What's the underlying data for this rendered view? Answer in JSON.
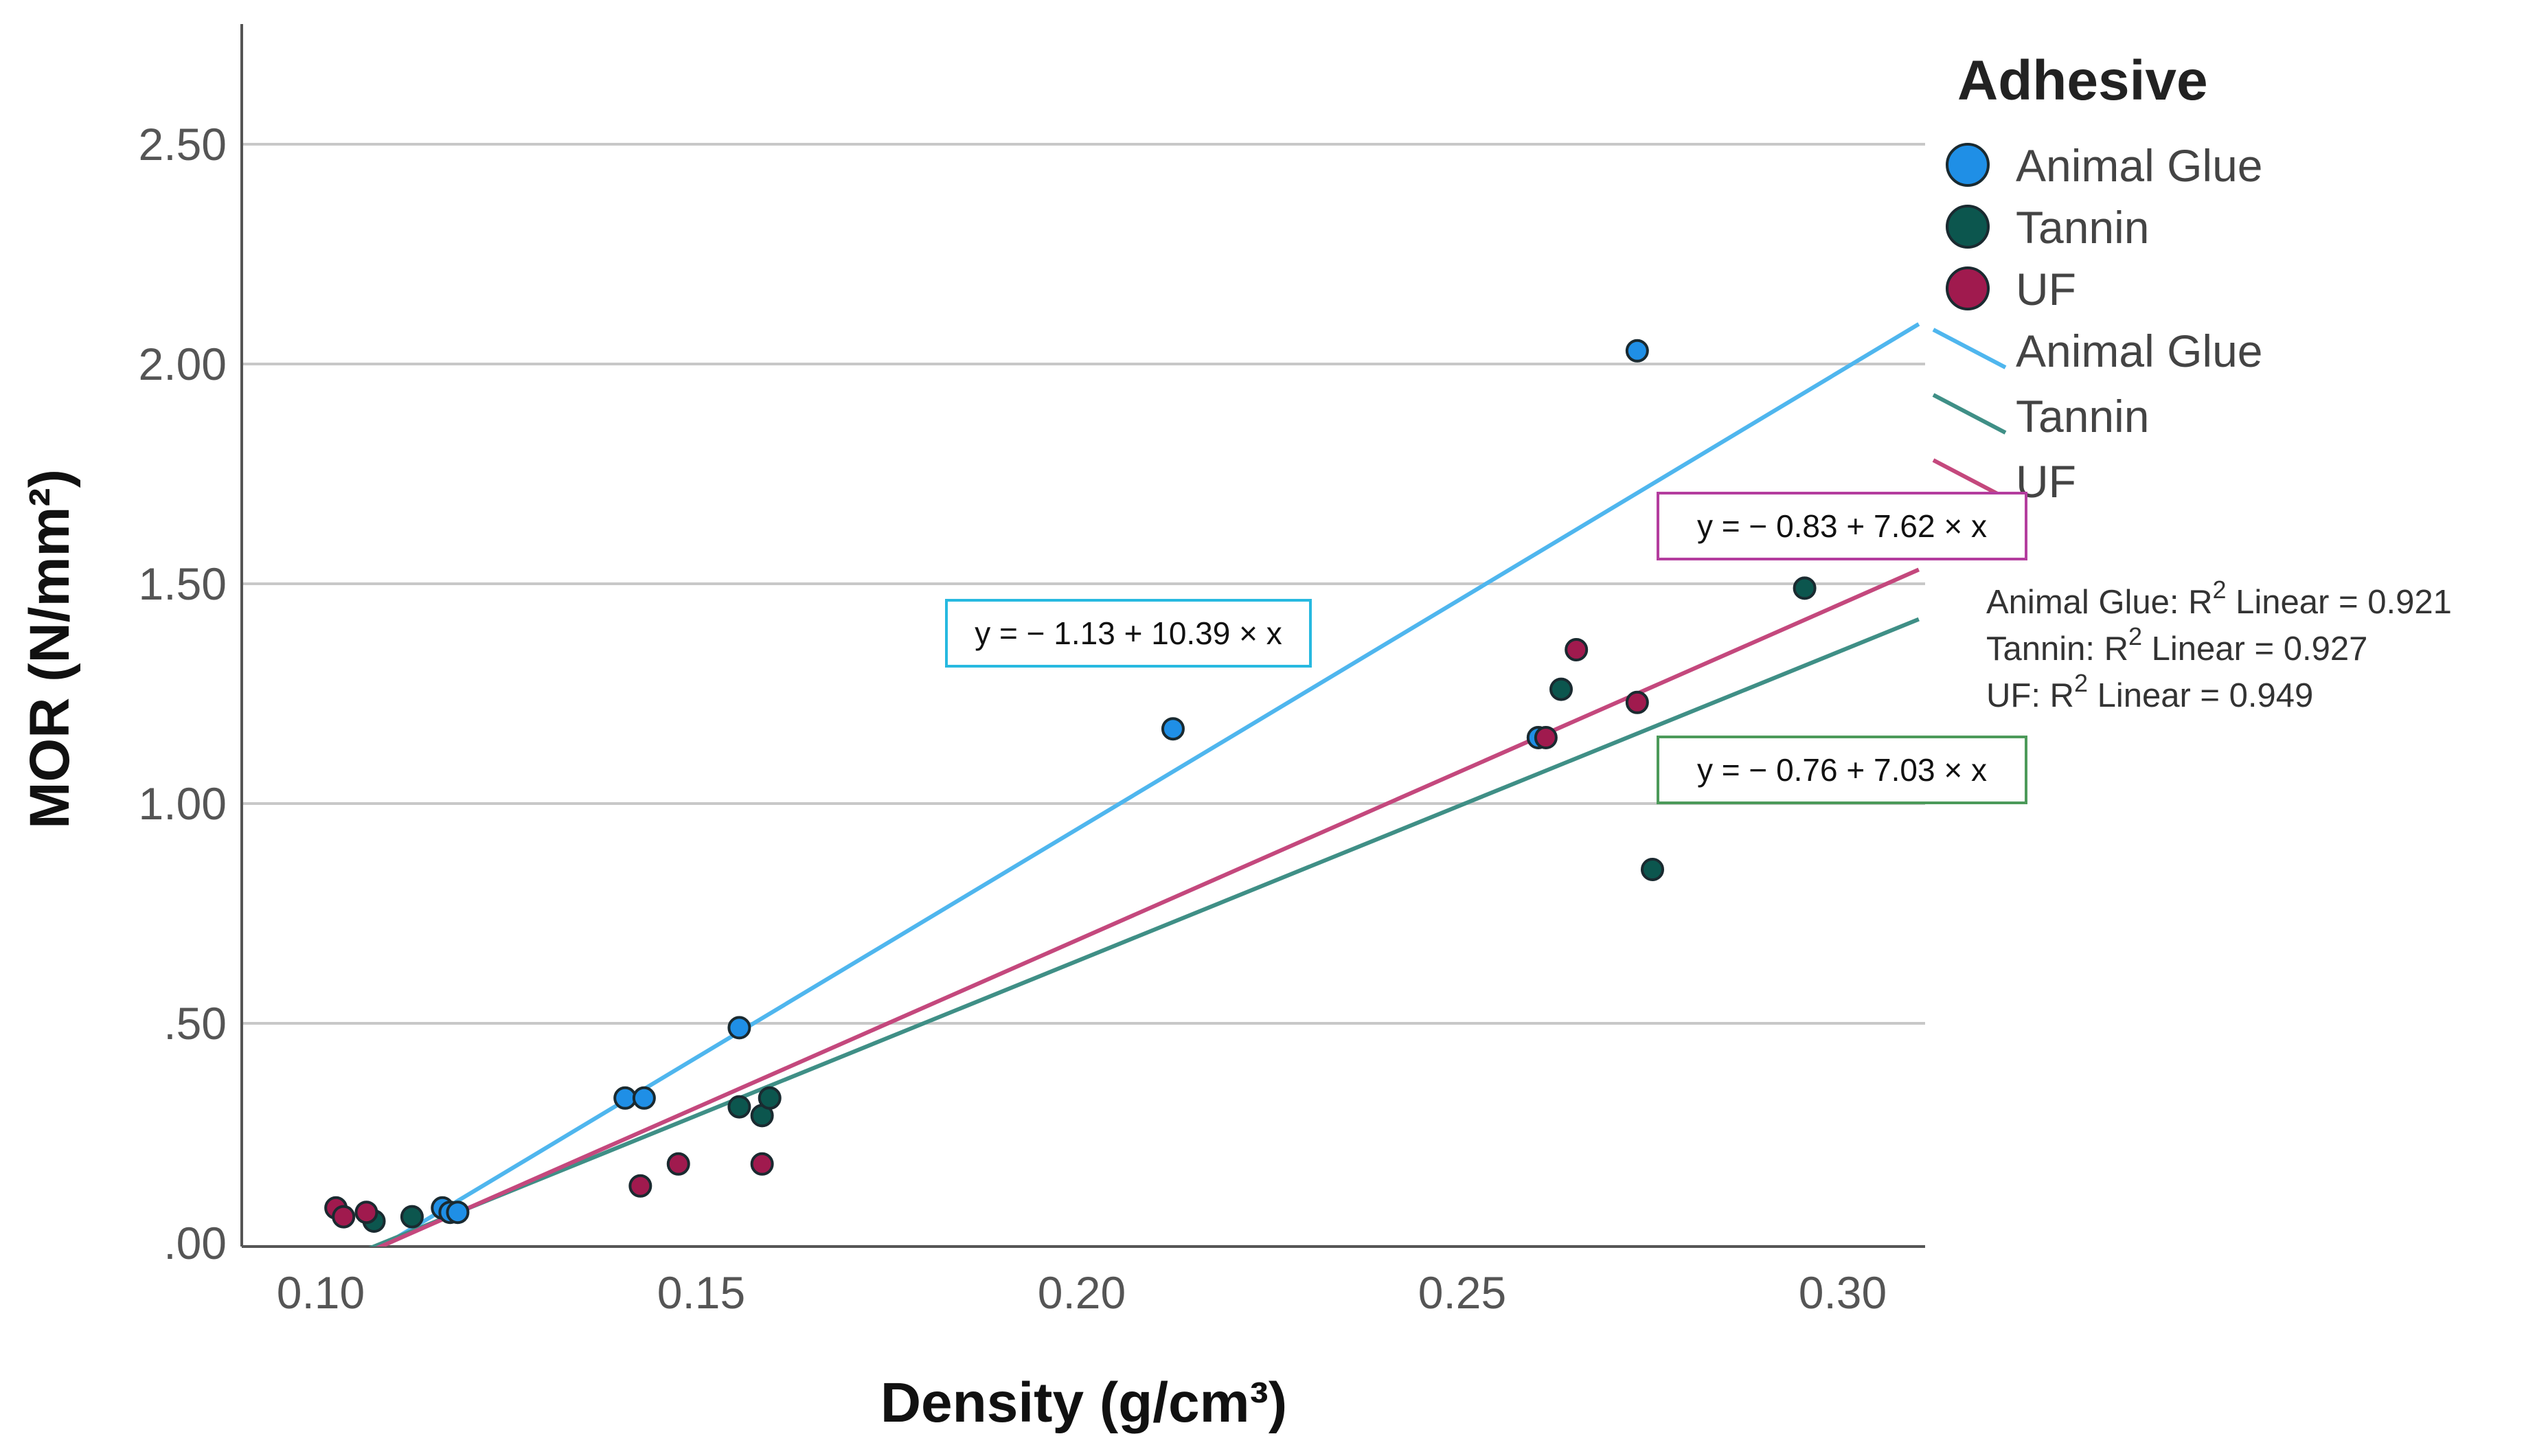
{
  "chart_data": {
    "type": "scatter",
    "xlabel": "Density (g/cm³)",
    "ylabel": "MOR (N/mm²)",
    "xlim": [
      0.09,
      0.31
    ],
    "ylim": [
      0.0,
      2.75
    ],
    "x_ticks": [
      0.1,
      0.15,
      0.2,
      0.25,
      0.3
    ],
    "x_tick_labels": [
      "0.10",
      "0.15",
      "0.20",
      "0.25",
      "0.30"
    ],
    "y_ticks": [
      0.0,
      0.5,
      1.0,
      1.5,
      2.0,
      2.5
    ],
    "y_tick_labels": [
      ".00",
      ".50",
      "1.00",
      "1.50",
      "2.00",
      "2.50"
    ],
    "grid": "horizontal",
    "legend_title": "Adhesive",
    "legend_position": "right",
    "series": [
      {
        "name": "Animal Glue",
        "color": "#1f8fe6",
        "line_color": "#4fb6ee",
        "points": [
          {
            "x": 0.116,
            "y": 0.08
          },
          {
            "x": 0.117,
            "y": 0.07
          },
          {
            "x": 0.118,
            "y": 0.07
          },
          {
            "x": 0.14,
            "y": 0.33
          },
          {
            "x": 0.1425,
            "y": 0.33
          },
          {
            "x": 0.155,
            "y": 0.49
          },
          {
            "x": 0.212,
            "y": 1.17
          },
          {
            "x": 0.26,
            "y": 1.15
          },
          {
            "x": 0.273,
            "y": 2.03
          }
        ],
        "intercept": -1.13,
        "slope": 10.39,
        "equation": "y = − 1.13 + 10.39 × x",
        "equation_color": "#27b9e0",
        "r2_label": "Animal Glue: R",
        "r2_value": "2",
        "r2_tail": " Linear = 0.921"
      },
      {
        "name": "Tannin",
        "color": "#0c564e",
        "line_color": "#3f8f86",
        "points": [
          {
            "x": 0.107,
            "y": 0.05
          },
          {
            "x": 0.112,
            "y": 0.06
          },
          {
            "x": 0.155,
            "y": 0.31
          },
          {
            "x": 0.158,
            "y": 0.29
          },
          {
            "x": 0.159,
            "y": 0.33
          },
          {
            "x": 0.263,
            "y": 1.26
          },
          {
            "x": 0.275,
            "y": 0.85
          },
          {
            "x": 0.295,
            "y": 1.49
          }
        ],
        "intercept": -0.76,
        "slope": 7.03,
        "equation": "y = − 0.76 + 7.03 × x",
        "equation_color": "#4c9a5a",
        "r2_label": "Tannin: R",
        "r2_value": "2",
        "r2_tail": " Linear = 0.927"
      },
      {
        "name": "UF",
        "color": "#a01a4e",
        "line_color": "#c4487d",
        "points": [
          {
            "x": 0.102,
            "y": 0.08
          },
          {
            "x": 0.103,
            "y": 0.06
          },
          {
            "x": 0.106,
            "y": 0.07
          },
          {
            "x": 0.142,
            "y": 0.13
          },
          {
            "x": 0.147,
            "y": 0.18
          },
          {
            "x": 0.158,
            "y": 0.18
          },
          {
            "x": 0.261,
            "y": 1.15
          },
          {
            "x": 0.265,
            "y": 1.35
          },
          {
            "x": 0.273,
            "y": 1.23
          }
        ],
        "intercept": -0.83,
        "slope": 7.62,
        "equation": "y = − 0.83 + 7.62 × x",
        "equation_color": "#b43d9e",
        "r2_label": "UF: R",
        "r2_value": "2",
        "r2_tail": " Linear = 0.949"
      }
    ]
  }
}
